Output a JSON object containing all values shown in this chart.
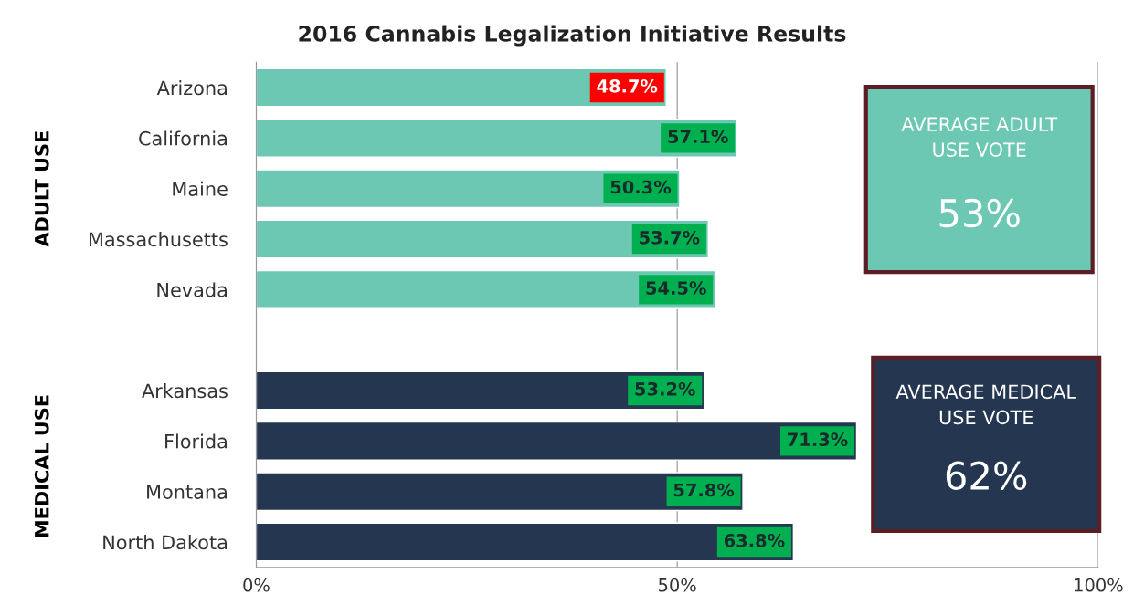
{
  "chart_data": {
    "type": "bar",
    "orientation": "horizontal",
    "title": "2016 Cannabis Legalization Initiative Results",
    "categories": [
      "Arizona",
      "California",
      "Maine",
      "Massachusetts",
      "Nevada",
      null,
      "Arkansas",
      "Florida",
      "Montana",
      "North Dakota"
    ],
    "values": [
      48.7,
      57.1,
      50.3,
      53.7,
      54.5,
      null,
      53.2,
      71.3,
      57.8,
      63.8
    ],
    "colors": [
      "#6cc8b3",
      "#6cc8b3",
      "#6cc8b3",
      "#6cc8b3",
      "#6cc8b3",
      null,
      "#253750",
      "#253750",
      "#253750",
      "#253750"
    ],
    "value_labels": [
      "48.7%",
      "57.1%",
      "50.3%",
      "53.7%",
      "54.5%",
      null,
      "53.2%",
      "71.3%",
      "57.8%",
      "63.8%"
    ],
    "xlim": [
      0,
      100
    ],
    "xticks": [
      {
        "value": 0,
        "label": "0%"
      },
      {
        "value": 50,
        "label": "50%"
      },
      {
        "value": 100,
        "label": "100%"
      }
    ],
    "grid": "x",
    "annotations": [
      "ADULT USE",
      "MEDICAL USE",
      "AVERAGE ADULT USE VOTE",
      "53%",
      "AVERAGE MEDICAL USE VOTE",
      "62%"
    ]
  }
}
